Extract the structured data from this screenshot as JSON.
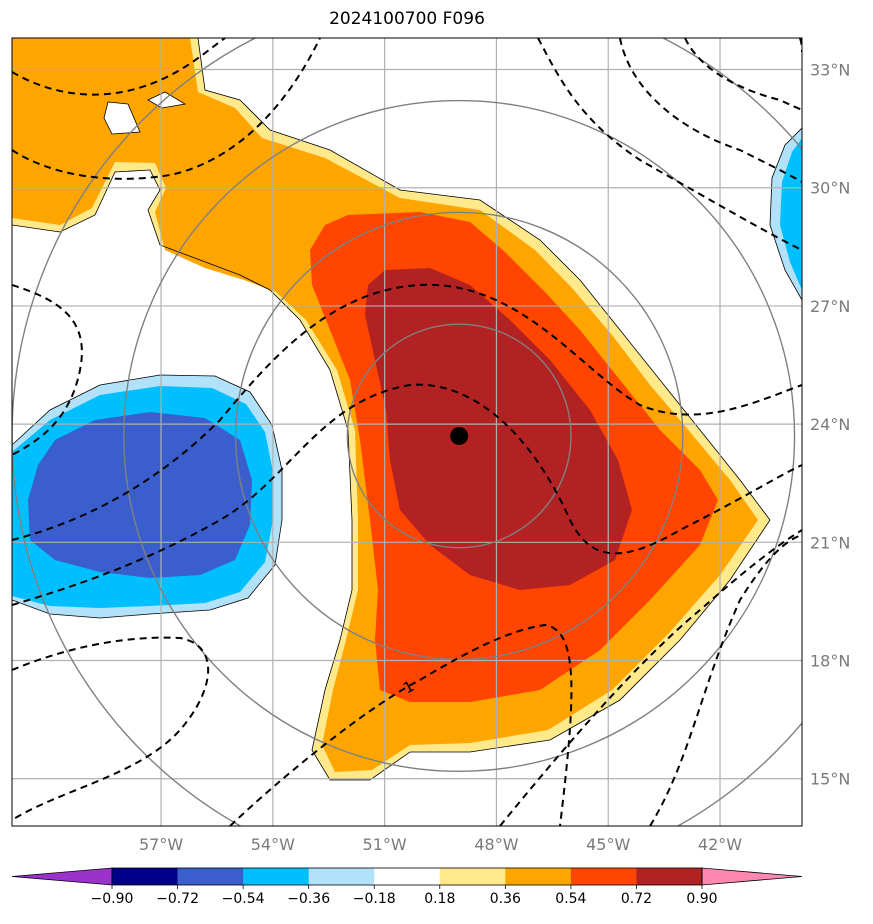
{
  "title": "2024100700 F096",
  "colors": {
    "grid": "#b0b0b0",
    "rings": "#808080",
    "contour": "#000000",
    "center": "#000000",
    "tick_text": "#7a7a7a"
  },
  "chart_data": {
    "type": "heatmap",
    "title": "2024100700 F096",
    "projection": "lat-lon map",
    "x_range_lon": [
      -61,
      -39.8
    ],
    "y_range_lat": [
      13.8,
      33.8
    ],
    "lon_ticks": [
      -57,
      -54,
      -51,
      -48,
      -45,
      -42
    ],
    "lon_tick_labels": [
      "57°W",
      "54°W",
      "51°W",
      "48°W",
      "45°W",
      "42°W"
    ],
    "lat_ticks": [
      15,
      18,
      21,
      24,
      27,
      30,
      33
    ],
    "lat_tick_labels": [
      "15°N",
      "18°N",
      "21°N",
      "24°N",
      "27°N",
      "30°N",
      "33°N"
    ],
    "grid": true,
    "center": {
      "lon": -49.0,
      "lat": 23.7
    },
    "range_rings_deg": [
      3,
      6,
      9,
      12
    ],
    "contour_label": "1",
    "colorbar": {
      "position": "bottom",
      "extend": "both",
      "levels": [
        -0.9,
        -0.72,
        -0.54,
        -0.36,
        -0.18,
        0.18,
        0.36,
        0.54,
        0.72,
        0.9
      ],
      "tick_labels": [
        "−0.90",
        "−0.72",
        "−0.54",
        "−0.36",
        "−0.18",
        "0.18",
        "0.36",
        "0.54",
        "0.72",
        "0.90"
      ],
      "colors": [
        "#9933cc",
        "#00008b",
        "#3a5fcd",
        "#00bfff",
        "#b2e2fa",
        "#ffffff",
        "#ffe98a",
        "#ffa500",
        "#ff4500",
        "#b22222",
        "#ff88b0"
      ]
    },
    "features": [
      {
        "name": "positive anomaly band",
        "approx_value": 0.45,
        "level_color": "#ffa500"
      },
      {
        "name": "strong positive core",
        "approx_value": 0.63,
        "level_color": "#ff4500"
      },
      {
        "name": "max positive core",
        "approx_value": 0.8,
        "level_color": "#b22222"
      },
      {
        "name": "negative anomaly west",
        "approx_value": -0.6,
        "level_color": "#3a5fcd"
      },
      {
        "name": "negative anomaly east edge",
        "approx_value": -0.45,
        "level_color": "#00bfff"
      }
    ]
  }
}
